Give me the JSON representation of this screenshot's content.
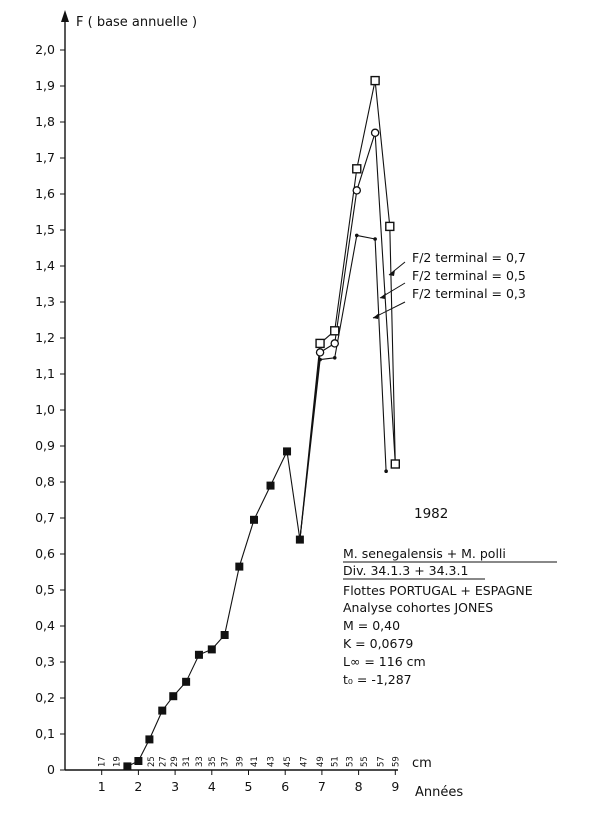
{
  "chart_data": {
    "type": "line",
    "ylabel": "F  ( base annuelle )",
    "xlabel": "Années",
    "length_unit": "cm",
    "ylim": [
      0,
      2.0
    ],
    "xlim": [
      0,
      10
    ],
    "y_ticks": [
      "0",
      "0,1",
      "0,2",
      "0,3",
      "0,4",
      "0,5",
      "0,6",
      "0,7",
      "0,8",
      "0,9",
      "1,0",
      "1,1",
      "1,2",
      "1,3",
      "1,4",
      "1,5",
      "1,6",
      "1,7",
      "1,8",
      "1,9",
      "2,0"
    ],
    "x_ticks": [
      {
        "value": 1,
        "label": "1"
      },
      {
        "value": 2,
        "label": "2"
      },
      {
        "value": 3,
        "label": "3"
      },
      {
        "value": 4,
        "label": "4"
      },
      {
        "value": 5,
        "label": "5"
      },
      {
        "value": 6,
        "label": "6"
      },
      {
        "value": 7,
        "label": "7"
      },
      {
        "value": 8,
        "label": "8"
      },
      {
        "value": 9,
        "label": "9"
      }
    ],
    "length_labels": [
      {
        "x": 1.0,
        "label": "17"
      },
      {
        "x": 1.4,
        "label": "19"
      },
      {
        "x": 2.35,
        "label": "25"
      },
      {
        "x": 2.65,
        "label": "27"
      },
      {
        "x": 2.97,
        "label": "29"
      },
      {
        "x": 3.3,
        "label": "31"
      },
      {
        "x": 3.65,
        "label": "33"
      },
      {
        "x": 4.0,
        "label": "35"
      },
      {
        "x": 4.35,
        "label": "37"
      },
      {
        "x": 4.75,
        "label": "39"
      },
      {
        "x": 5.15,
        "label": "41"
      },
      {
        "x": 5.6,
        "label": "43"
      },
      {
        "x": 6.05,
        "label": "45"
      },
      {
        "x": 6.5,
        "label": "47"
      },
      {
        "x": 6.95,
        "label": "49"
      },
      {
        "x": 7.35,
        "label": "51"
      },
      {
        "x": 7.75,
        "label": "53"
      },
      {
        "x": 8.15,
        "label": "55"
      },
      {
        "x": 8.6,
        "label": "57"
      },
      {
        "x": 9.0,
        "label": "59"
      }
    ],
    "series": [
      {
        "marker": "filled-square",
        "points": [
          {
            "x": 1.7,
            "y": 0.01
          },
          {
            "x": 2.0,
            "y": 0.025
          },
          {
            "x": 2.3,
            "y": 0.085
          },
          {
            "x": 2.65,
            "y": 0.165
          },
          {
            "x": 2.95,
            "y": 0.205
          },
          {
            "x": 3.3,
            "y": 0.245
          },
          {
            "x": 3.65,
            "y": 0.32
          },
          {
            "x": 4.0,
            "y": 0.335
          },
          {
            "x": 4.35,
            "y": 0.375
          },
          {
            "x": 4.75,
            "y": 0.565
          },
          {
            "x": 5.15,
            "y": 0.695
          },
          {
            "x": 5.6,
            "y": 0.79
          },
          {
            "x": 6.05,
            "y": 0.885
          },
          {
            "x": 6.4,
            "y": 0.64
          }
        ]
      },
      {
        "marker": "open-square",
        "points": [
          {
            "x": 6.4,
            "y": 0.64
          },
          {
            "x": 6.95,
            "y": 1.185
          },
          {
            "x": 7.35,
            "y": 1.22
          },
          {
            "x": 7.95,
            "y": 1.67
          },
          {
            "x": 8.45,
            "y": 1.915
          },
          {
            "x": 8.85,
            "y": 1.51
          },
          {
            "x": 9.0,
            "y": 0.85
          }
        ]
      },
      {
        "marker": "open-circle",
        "points": [
          {
            "x": 6.4,
            "y": 0.64
          },
          {
            "x": 6.95,
            "y": 1.16
          },
          {
            "x": 7.35,
            "y": 1.185
          },
          {
            "x": 7.95,
            "y": 1.61
          },
          {
            "x": 8.45,
            "y": 1.77
          },
          {
            "x": 9.0,
            "y": 0.85
          }
        ]
      },
      {
        "marker": "small-dot",
        "points": [
          {
            "x": 6.4,
            "y": 0.64
          },
          {
            "x": 6.95,
            "y": 1.14
          },
          {
            "x": 7.35,
            "y": 1.145
          },
          {
            "x": 7.95,
            "y": 1.485
          },
          {
            "x": 8.45,
            "y": 1.475
          },
          {
            "x": 8.75,
            "y": 0.83
          }
        ]
      }
    ],
    "legend": [
      {
        "label": "F/2 terminal = 0,7",
        "marker": "open-square"
      },
      {
        "label": "F/2 terminal = 0,5",
        "marker": "open-circle"
      },
      {
        "label": "F/2 terminal = 0,3",
        "marker": "small-dot"
      }
    ],
    "year": "1982",
    "info": {
      "species": "M. senegalensis  +  M. polli",
      "division": "Div. 34.1.3 + 34.3.1",
      "fleets": "Flottes PORTUGAL + ESPAGNE",
      "analysis": "Analyse cohortes JONES",
      "m": "M = 0,40",
      "k": "K = 0,0679",
      "linf": "L∞ = 116 cm",
      "t0": "t₀ = -1,287"
    },
    "colors": {
      "ink": "#111111",
      "background": "#ffffff"
    }
  }
}
